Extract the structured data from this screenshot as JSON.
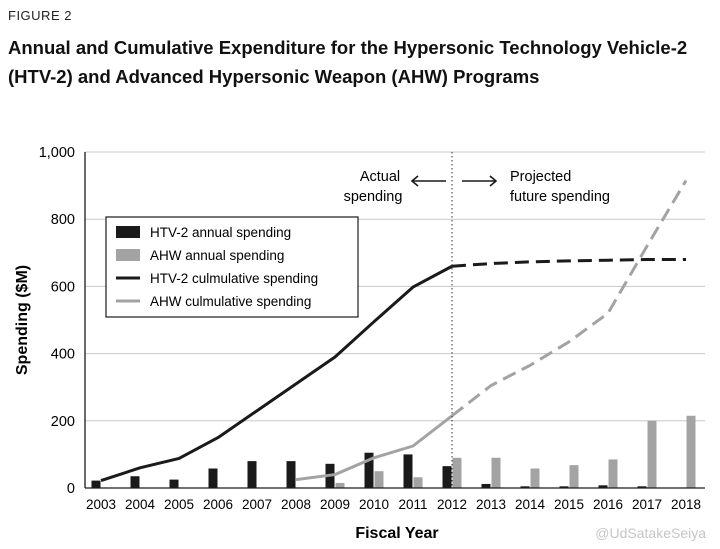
{
  "figure_label": "FIGURE 2",
  "title_line1": "Annual and Cumulative Expenditure for the Hypersonic Technology Vehicle-2",
  "title_line2": "(HTV-2) and Advanced Hypersonic Weapon (AHW) Programs",
  "watermark": "@UdSatakeSeiya",
  "colors": {
    "htv2": "#1a1a1a",
    "ahw": "#a3a3a3",
    "grid": "#c8c8c8"
  },
  "chart_data": {
    "type": "bar",
    "title": "",
    "xlabel": "Fiscal Year",
    "ylabel": "Spending ($M)",
    "ylim": [
      0,
      1000
    ],
    "yticks": [
      0,
      200,
      400,
      600,
      800,
      1000
    ],
    "ytick_labels": [
      "0",
      "200",
      "400",
      "600",
      "800",
      "1,000"
    ],
    "grid": "horizontal",
    "legend_position": "top-left",
    "categories": [
      "2003",
      "2004",
      "2005",
      "2006",
      "2007",
      "2008",
      "2009",
      "2010",
      "2011",
      "2012",
      "2013",
      "2014",
      "2015",
      "2016",
      "2017",
      "2018"
    ],
    "divider_after": "2012",
    "annotations": {
      "actual_line1": "Actual",
      "actual_line2": "spending",
      "projected_line1": "Projected",
      "projected_line2": "future spending"
    },
    "series": [
      {
        "name": "HTV-2 annual spending",
        "kind": "bar",
        "values": [
          22,
          35,
          25,
          58,
          80,
          80,
          72,
          105,
          100,
          65,
          12,
          5,
          5,
          8,
          5,
          0
        ]
      },
      {
        "name": "AHW annual spending",
        "kind": "bar",
        "values": [
          0,
          0,
          0,
          0,
          0,
          0,
          15,
          50,
          32,
          90,
          90,
          58,
          68,
          85,
          200,
          215
        ]
      },
      {
        "name": "HTV-2 culmulative spending",
        "kind": "line",
        "values": [
          22,
          60,
          88,
          150,
          230,
          310,
          390,
          495,
          598,
          660,
          668,
          673,
          676,
          678,
          680,
          680
        ],
        "projected_from": "2012"
      },
      {
        "name": "AHW culmulative spending",
        "kind": "line",
        "values": [
          null,
          null,
          null,
          null,
          null,
          25,
          40,
          90,
          125,
          215,
          305,
          365,
          435,
          520,
          720,
          915
        ],
        "projected_from": "2012"
      }
    ]
  }
}
